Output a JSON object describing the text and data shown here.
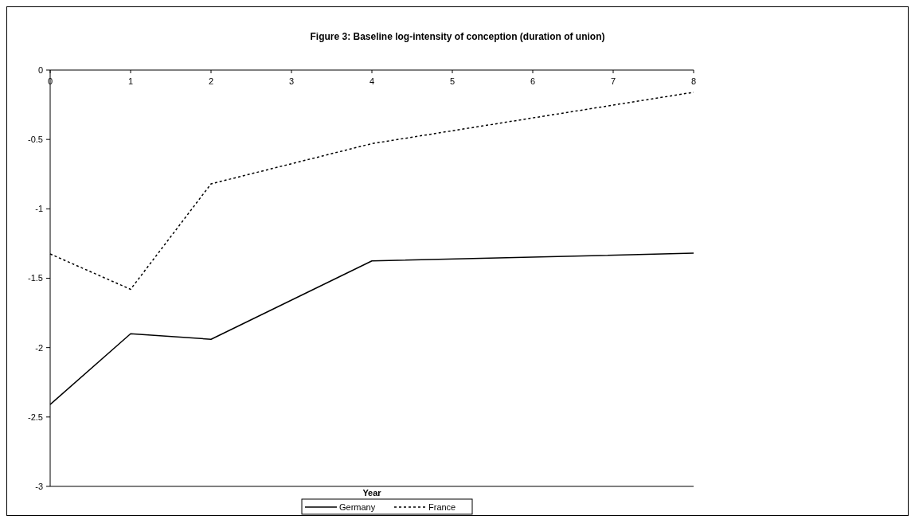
{
  "chart_data": {
    "type": "line",
    "title": "Figure 3: Baseline log-intensity of conception (duration of union)",
    "xlabel": "Year",
    "x": [
      0,
      1,
      2,
      4,
      8
    ],
    "series": [
      {
        "name": "Germany",
        "color": "#000000",
        "line_style": "solid",
        "values": [
          -2.41,
          -1.9,
          -1.94,
          -1.375,
          -1.32
        ]
      },
      {
        "name": "France",
        "color": "#000000",
        "line_style": "dotted",
        "values": [
          -1.325,
          -1.58,
          -0.82,
          -0.53,
          -0.16
        ]
      }
    ],
    "xlim": [
      0,
      8
    ],
    "xticks": [
      0,
      1,
      2,
      3,
      4,
      5,
      6,
      7,
      8
    ],
    "ylim": [
      -3,
      0
    ],
    "yticks": [
      0,
      -0.5,
      -1,
      -1.5,
      -2,
      -2.5,
      -3
    ],
    "grid": false,
    "legend": "bottom"
  }
}
